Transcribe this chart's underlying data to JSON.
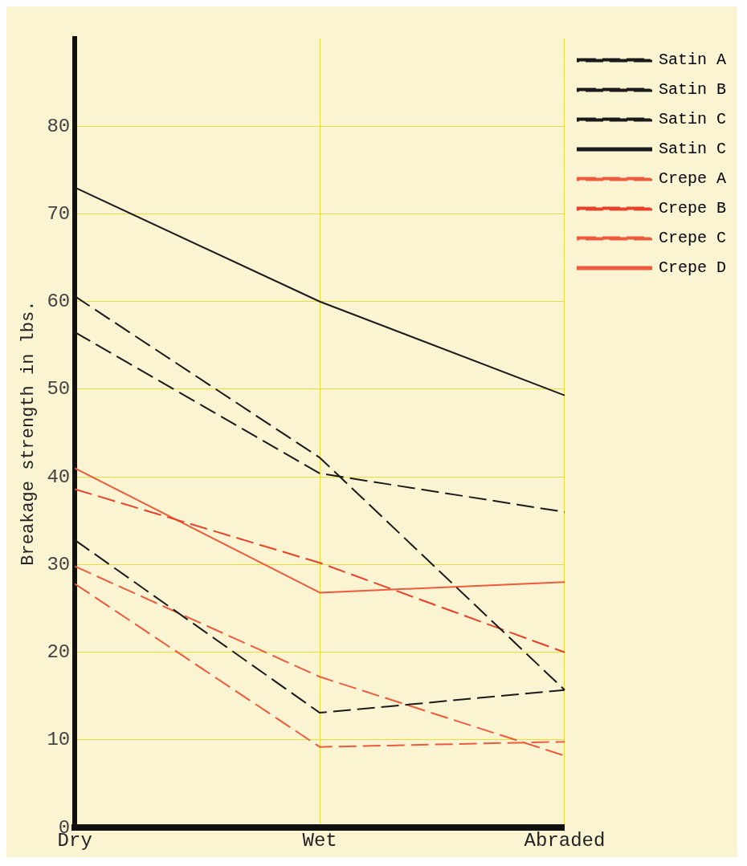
{
  "chart_data": {
    "type": "line",
    "ylabel": "Breakage strength in lbs.",
    "categories": [
      "Dry",
      "Wet",
      "Abraded"
    ],
    "series": [
      {
        "name": "Satin A",
        "color": "#1a1a1a",
        "line_style": "dashed",
        "values": [
          56.5,
          40.4,
          36
        ]
      },
      {
        "name": "Satin B",
        "color": "#1a1a1a",
        "line_style": "dashed",
        "values": [
          60.6,
          42.2,
          15.7
        ]
      },
      {
        "name": "Satin C",
        "color": "#1a1a1a",
        "line_style": "dashed",
        "values": [
          32.8,
          13.1,
          15.7
        ]
      },
      {
        "name": "Satin C",
        "color": "#1a1a1a",
        "line_style": "solid",
        "values": [
          73,
          60,
          49.3
        ]
      },
      {
        "name": "Crepe A",
        "color": "#ee5a3c",
        "line_style": "dashed",
        "values": [
          29.8,
          17.2,
          8.2
        ]
      },
      {
        "name": "Crepe B",
        "color": "#e8402a",
        "line_style": "dashed",
        "values": [
          38.6,
          30.2,
          20
        ]
      },
      {
        "name": "Crepe C",
        "color": "#ee5a3c",
        "line_style": "dashed",
        "values": [
          27.8,
          9.2,
          9.8
        ]
      },
      {
        "name": "Crepe D",
        "color": "#ee5a3c",
        "line_style": "solid",
        "values": [
          41,
          26.8,
          28
        ]
      }
    ],
    "ylim": [
      0,
      90
    ],
    "yticks": [
      0,
      10,
      20,
      30,
      40,
      50,
      60,
      70,
      80
    ],
    "grid": true,
    "legend": "top right",
    "marker": "none"
  }
}
